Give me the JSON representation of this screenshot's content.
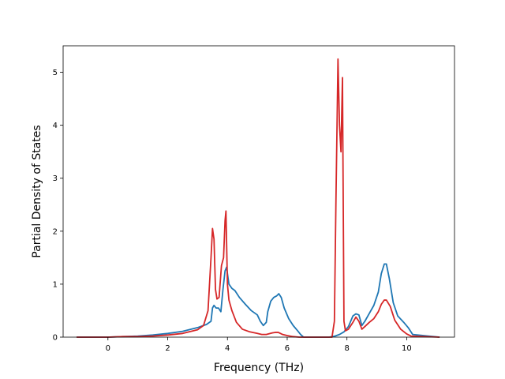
{
  "chart_data": {
    "type": "line",
    "title": "",
    "xlabel": "Frequency (THz)",
    "ylabel": "Partial Density of States",
    "xlim": [
      -1.5,
      11.6
    ],
    "ylim": [
      0,
      5.5
    ],
    "xticks": [
      0,
      2,
      4,
      6,
      8,
      10
    ],
    "yticks": [
      0,
      1,
      2,
      3,
      4,
      5
    ],
    "grid": false,
    "legend": "none",
    "series": [
      {
        "color": "#1f77b4",
        "x": [
          -1.05,
          0.0,
          0.5,
          1.0,
          1.5,
          2.0,
          2.5,
          3.0,
          3.3,
          3.45,
          3.5,
          3.55,
          3.62,
          3.7,
          3.78,
          3.85,
          3.92,
          3.97,
          4.05,
          4.15,
          4.25,
          4.4,
          4.6,
          4.8,
          5.0,
          5.1,
          5.2,
          5.3,
          5.35,
          5.45,
          5.55,
          5.65,
          5.72,
          5.8,
          5.9,
          6.05,
          6.2,
          6.35,
          6.45,
          6.55,
          7.4,
          7.6,
          7.75,
          7.9,
          8.05,
          8.2,
          8.3,
          8.4,
          8.5,
          8.6,
          8.75,
          8.9,
          9.05,
          9.15,
          9.25,
          9.32,
          9.42,
          9.55,
          9.7,
          9.9,
          10.05,
          10.2,
          11.1
        ],
        "y": [
          0,
          0,
          0.01,
          0.02,
          0.04,
          0.07,
          0.11,
          0.18,
          0.24,
          0.3,
          0.55,
          0.6,
          0.55,
          0.55,
          0.48,
          0.9,
          1.25,
          1.32,
          1.0,
          0.92,
          0.88,
          0.75,
          0.62,
          0.5,
          0.42,
          0.3,
          0.22,
          0.28,
          0.48,
          0.68,
          0.75,
          0.78,
          0.82,
          0.75,
          0.55,
          0.35,
          0.22,
          0.12,
          0.05,
          0,
          0,
          0.02,
          0.05,
          0.1,
          0.2,
          0.4,
          0.44,
          0.42,
          0.22,
          0.3,
          0.45,
          0.6,
          0.85,
          1.2,
          1.38,
          1.38,
          1.1,
          0.65,
          0.4,
          0.28,
          0.18,
          0.05,
          0
        ]
      },
      {
        "color": "#d62728",
        "x": [
          -1.05,
          0.0,
          0.5,
          1.0,
          1.5,
          2.0,
          2.5,
          3.0,
          3.2,
          3.35,
          3.45,
          3.5,
          3.55,
          3.6,
          3.65,
          3.72,
          3.8,
          3.87,
          3.92,
          3.95,
          4.0,
          4.05,
          4.15,
          4.3,
          4.5,
          4.75,
          5.0,
          5.15,
          5.3,
          5.5,
          5.6,
          5.7,
          5.85,
          6.0,
          6.2,
          6.4,
          7.5,
          7.58,
          7.63,
          7.7,
          7.75,
          7.8,
          7.85,
          7.9,
          7.95,
          8.05,
          8.2,
          8.3,
          8.4,
          8.5,
          8.6,
          8.75,
          8.9,
          9.05,
          9.15,
          9.25,
          9.32,
          9.45,
          9.6,
          9.8,
          10.0,
          10.15,
          11.1
        ],
        "y": [
          0,
          0,
          0.01,
          0.01,
          0.02,
          0.04,
          0.07,
          0.14,
          0.22,
          0.5,
          1.5,
          2.05,
          1.85,
          0.9,
          0.72,
          0.75,
          1.35,
          1.5,
          2.2,
          2.38,
          1.0,
          0.7,
          0.5,
          0.28,
          0.15,
          0.1,
          0.07,
          0.05,
          0.05,
          0.08,
          0.09,
          0.09,
          0.05,
          0.03,
          0.01,
          0,
          0,
          0.3,
          2.5,
          5.25,
          4.0,
          3.5,
          4.9,
          0.3,
          0.12,
          0.15,
          0.28,
          0.38,
          0.3,
          0.15,
          0.2,
          0.28,
          0.35,
          0.48,
          0.62,
          0.7,
          0.7,
          0.58,
          0.32,
          0.15,
          0.06,
          0.02,
          0
        ]
      }
    ]
  }
}
